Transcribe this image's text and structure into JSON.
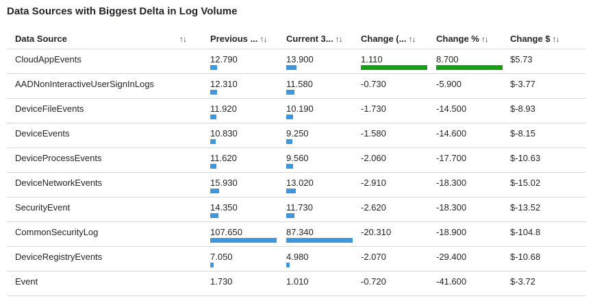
{
  "title": "Data Sources with Biggest Delta in Log Volume",
  "colors": {
    "bar_blue": "#3e96dc",
    "bar_green": "#14a014",
    "text": "#252423",
    "gridline": "#d6d6d6"
  },
  "table": {
    "column_keys": [
      "data_source",
      "previous",
      "current",
      "change",
      "change_pct",
      "change_usd"
    ],
    "columns": [
      {
        "key": "data_source",
        "label": "Data Source",
        "sort_icon": "↑↓"
      },
      {
        "key": "previous",
        "label": "Previous ...",
        "sort_icon": "↑↓"
      },
      {
        "key": "current",
        "label": "Current 3...",
        "sort_icon": "↑↓"
      },
      {
        "key": "change",
        "label": "Change (...",
        "sort_icon": "↑↓"
      },
      {
        "key": "change_pct",
        "label": "Change %",
        "sort_icon": "↑↓"
      },
      {
        "key": "change_usd",
        "label": "Change $",
        "sort_icon": "↑↓"
      }
    ],
    "rows": [
      [
        "CloudAppEvents",
        "12.790",
        "13.900",
        "1.110",
        "8.700",
        "$5.73"
      ],
      [
        "AADNonInteractiveUserSignInLogs",
        "12.310",
        "11.580",
        "-0.730",
        "-5.900",
        "$-3.77"
      ],
      [
        "DeviceFileEvents",
        "11.920",
        "10.190",
        "-1.730",
        "-14.500",
        "$-8.93"
      ],
      [
        "DeviceEvents",
        "10.830",
        "9.250",
        "-1.580",
        "-14.600",
        "$-8.15"
      ],
      [
        "DeviceProcessEvents",
        "11.620",
        "9.560",
        "-2.060",
        "-17.700",
        "$-10.63"
      ],
      [
        "DeviceNetworkEvents",
        "15.930",
        "13.020",
        "-2.910",
        "-18.300",
        "$-15.02"
      ],
      [
        "SecurityEvent",
        "14.350",
        "11.730",
        "-2.620",
        "-18.300",
        "$-13.52"
      ],
      [
        "CommonSecurityLog",
        "107.650",
        "87.340",
        "-20.310",
        "-18.900",
        "$-104.8"
      ],
      [
        "DeviceRegistryEvents",
        "7.050",
        "4.980",
        "-2.070",
        "-29.400",
        "$-10.68"
      ],
      [
        "Event",
        "1.730",
        "1.010",
        "-0.720",
        "-41.600",
        "$-3.72"
      ]
    ]
  },
  "chart_data": {
    "type": "table",
    "title": "Data Sources with Biggest Delta in Log Volume",
    "columns": [
      "Data Source",
      "Previous ...",
      "Current 3...",
      "Change (...",
      "Change %",
      "Change $"
    ],
    "rows": [
      [
        "CloudAppEvents",
        12.79,
        13.9,
        1.11,
        8.7,
        5.73
      ],
      [
        "AADNonInteractiveUserSignInLogs",
        12.31,
        11.58,
        -0.73,
        -5.9,
        -3.77
      ],
      [
        "DeviceFileEvents",
        11.92,
        10.19,
        -1.73,
        -14.5,
        -8.93
      ],
      [
        "DeviceEvents",
        10.83,
        9.25,
        -1.58,
        -14.6,
        -8.15
      ],
      [
        "DeviceProcessEvents",
        11.62,
        9.56,
        -2.06,
        -17.7,
        -10.63
      ],
      [
        "DeviceNetworkEvents",
        15.93,
        13.02,
        -2.91,
        -18.3,
        -15.02
      ],
      [
        "SecurityEvent",
        14.35,
        11.73,
        -2.62,
        -18.3,
        -13.52
      ],
      [
        "CommonSecurityLog",
        107.65,
        87.34,
        -20.31,
        -18.9,
        -104.8
      ],
      [
        "DeviceRegistryEvents",
        7.05,
        4.98,
        -2.07,
        -29.4,
        -10.68
      ],
      [
        "Event",
        1.73,
        1.01,
        -0.72,
        -41.6,
        -3.72
      ]
    ],
    "data_bars": {
      "previous": {
        "color": "#3e96dc",
        "scaling": "column min-max"
      },
      "current": {
        "color": "#3e96dc",
        "scaling": "column min-max"
      },
      "change": {
        "color": "#14a014",
        "positive_only": true
      },
      "change_pct": {
        "color": "#14a014",
        "positive_only": true
      }
    }
  }
}
